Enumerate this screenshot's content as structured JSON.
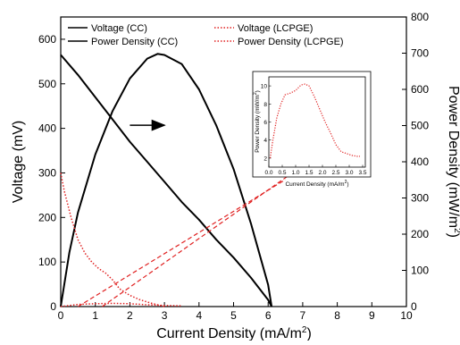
{
  "chart_data": [
    {
      "type": "line",
      "role": "main",
      "xlabel": "Current Density (mA/m",
      "xlabel_sup": "2",
      "xlabel_close": ")",
      "ylabel": "Voltage (mV)",
      "y2label": "Power Density (mW/m",
      "y2label_sup": "2",
      "y2label_close": ")",
      "xlim": [
        0,
        10
      ],
      "ylim": [
        0,
        650
      ],
      "y2lim": [
        0,
        800
      ],
      "xticks": [
        0,
        1,
        2,
        3,
        4,
        5,
        6,
        7,
        8,
        9,
        10
      ],
      "yticks": [
        0,
        100,
        200,
        300,
        400,
        500,
        600
      ],
      "y2ticks": [
        0,
        100,
        200,
        300,
        400,
        500,
        600,
        700,
        800
      ],
      "legend": [
        {
          "label": "Voltage (CC)",
          "style": "solid",
          "color": "#000000"
        },
        {
          "label": "Power Density (CC)",
          "style": "solid",
          "color": "#000000"
        },
        {
          "label": "Voltage (LCPGE)",
          "style": "dotted",
          "color": "#e02020"
        },
        {
          "label": "Power Density (LCPGE)",
          "style": "dotted",
          "color": "#e02020"
        }
      ],
      "series": [
        {
          "legend_index": 0,
          "axis": "left",
          "color": "#000000",
          "style": "solid",
          "x": [
            0,
            0.5,
            1.0,
            1.5,
            2.0,
            2.5,
            3.0,
            3.5,
            4.0,
            4.5,
            5.0,
            5.5,
            6.0,
            6.1
          ],
          "y": [
            565,
            520,
            470,
            420,
            370,
            325,
            280,
            235,
            195,
            150,
            110,
            65,
            15,
            0
          ]
        },
        {
          "legend_index": 1,
          "axis": "right",
          "color": "#000000",
          "style": "solid",
          "x": [
            0,
            0.25,
            0.5,
            1.0,
            1.5,
            2.0,
            2.5,
            2.8,
            3.0,
            3.5,
            4.0,
            4.5,
            5.0,
            5.5,
            6.0,
            6.1
          ],
          "y": [
            0,
            150,
            260,
            420,
            540,
            630,
            685,
            698,
            695,
            670,
            600,
            500,
            380,
            230,
            60,
            0
          ]
        },
        {
          "legend_index": 2,
          "axis": "left",
          "color": "#e02020",
          "style": "dotted",
          "x": [
            0,
            0.1,
            0.3,
            0.5,
            0.7,
            0.9,
            1.1,
            1.3,
            1.5,
            1.7,
            2.0,
            2.3,
            2.6,
            2.9,
            3.0
          ],
          "y": [
            300,
            260,
            200,
            150,
            120,
            100,
            85,
            75,
            60,
            40,
            25,
            15,
            8,
            2,
            0
          ]
        },
        {
          "legend_index": 3,
          "axis": "right",
          "color": "#e02020",
          "style": "dotted",
          "x": [
            0,
            0.5,
            1.0,
            1.5,
            2.0,
            2.5,
            3.0,
            3.5
          ],
          "y": [
            0,
            6,
            8,
            9,
            8,
            5,
            3,
            2
          ]
        }
      ],
      "annotations": [
        {
          "type": "arrow",
          "from": [
            2.0,
            407
          ],
          "to": [
            3.0,
            407
          ],
          "color": "#000000",
          "points_to": "right axis"
        },
        {
          "type": "zoom-line",
          "from": [
            1.2,
            0
          ],
          "to": [
            6.7,
            300
          ],
          "color": "#e02020",
          "style": "dashed"
        },
        {
          "type": "zoom-line",
          "from": [
            0.5,
            0
          ],
          "to": [
            6.5,
            285
          ],
          "color": "#e02020",
          "style": "dashed"
        }
      ]
    },
    {
      "type": "line",
      "role": "inset",
      "xlabel": "Current Density (mA/m",
      "xlabel_sup": "2",
      "xlabel_close": ")",
      "ylabel": "Power Density (mW/m",
      "ylabel_sup": "2",
      "ylabel_close": ")",
      "xlim": [
        0,
        3.6
      ],
      "ylim": [
        1,
        11
      ],
      "xticks": [
        "0.0",
        "0.5",
        "1.0",
        "1.5",
        "2.0",
        "2.5",
        "3.0",
        "3.5"
      ],
      "yticks": [
        2,
        4,
        6,
        8,
        10
      ],
      "series": [
        {
          "color": "#e02020",
          "style": "dotted",
          "x": [
            0.05,
            0.15,
            0.3,
            0.45,
            0.6,
            0.8,
            1.0,
            1.2,
            1.35,
            1.5,
            1.7,
            1.9,
            2.1,
            2.3,
            2.5,
            2.7,
            2.9,
            3.1,
            3.3,
            3.4
          ],
          "y": [
            2,
            4,
            6.5,
            8,
            9,
            9.2,
            9.5,
            10.1,
            10.2,
            10,
            8.8,
            7.4,
            6,
            4.8,
            3.5,
            2.7,
            2.5,
            2.3,
            2.2,
            2.2
          ]
        }
      ]
    }
  ]
}
